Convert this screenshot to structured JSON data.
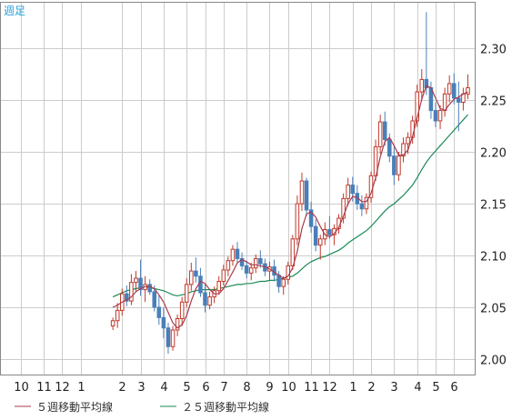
{
  "chart_data": {
    "type": "candlestick",
    "period_label": "週足",
    "ylim": [
      1.985,
      2.345
    ],
    "y_ticks": [
      "2.30",
      "2.25",
      "2.20",
      "2.15",
      "2.10",
      "2.05",
      "2.00"
    ],
    "y_tick_values": [
      2.3,
      2.25,
      2.2,
      2.15,
      2.1,
      2.05,
      2.0
    ],
    "x_tick_labels": [
      "10",
      "11",
      "12",
      "1",
      "2",
      "3",
      "4",
      "5",
      "6",
      "7",
      "8",
      "9",
      "10",
      "11",
      "12",
      "1",
      "2",
      "3",
      "4",
      "5",
      "6"
    ],
    "x_tick_index": [
      3,
      8,
      12,
      16,
      25,
      29,
      34,
      39,
      43,
      47,
      52,
      57,
      61,
      66,
      70,
      75,
      79,
      84,
      89,
      93,
      97
    ],
    "grid": true,
    "legend_position": "bottom",
    "colors": {
      "up": "#c0392b",
      "down": "#4a7fb8",
      "ma5": "#a93a4a",
      "ma25": "#1a8a55",
      "grid": "#cccccc",
      "border": "#888888"
    },
    "ohlc": [
      [
        2.032,
        2.04,
        2.028,
        2.037
      ],
      [
        2.037,
        2.054,
        2.03,
        2.047
      ],
      [
        2.047,
        2.068,
        2.042,
        2.063
      ],
      [
        2.063,
        2.071,
        2.051,
        2.056
      ],
      [
        2.056,
        2.082,
        2.052,
        2.074
      ],
      [
        2.074,
        2.085,
        2.065,
        2.078
      ],
      [
        2.078,
        2.096,
        2.061,
        2.067
      ],
      [
        2.067,
        2.08,
        2.055,
        2.072
      ],
      [
        2.072,
        2.077,
        2.062,
        2.065
      ],
      [
        2.065,
        2.071,
        2.046,
        2.05
      ],
      [
        2.05,
        2.061,
        2.033,
        2.04
      ],
      [
        2.04,
        2.05,
        2.02,
        2.03
      ],
      [
        2.03,
        2.035,
        2.005,
        2.012
      ],
      [
        2.012,
        2.032,
        2.008,
        2.028
      ],
      [
        2.028,
        2.043,
        2.022,
        2.039
      ],
      [
        2.039,
        2.06,
        2.032,
        2.055
      ],
      [
        2.055,
        2.078,
        2.05,
        2.072
      ],
      [
        2.072,
        2.093,
        2.066,
        2.085
      ],
      [
        2.085,
        2.098,
        2.074,
        2.08
      ],
      [
        2.08,
        2.088,
        2.06,
        2.064
      ],
      [
        2.064,
        2.072,
        2.045,
        2.052
      ],
      [
        2.052,
        2.065,
        2.048,
        2.06
      ],
      [
        2.06,
        2.07,
        2.054,
        2.066
      ],
      [
        2.066,
        2.08,
        2.062,
        2.075
      ],
      [
        2.075,
        2.091,
        2.071,
        2.086
      ],
      [
        2.086,
        2.099,
        2.08,
        2.095
      ],
      [
        2.095,
        2.11,
        2.09,
        2.106
      ],
      [
        2.106,
        2.113,
        2.092,
        2.097
      ],
      [
        2.097,
        2.103,
        2.086,
        2.09
      ],
      [
        2.09,
        2.095,
        2.078,
        2.083
      ],
      [
        2.083,
        2.093,
        2.076,
        2.088
      ],
      [
        2.088,
        2.101,
        2.083,
        2.097
      ],
      [
        2.097,
        2.105,
        2.088,
        2.092
      ],
      [
        2.092,
        2.097,
        2.08,
        2.085
      ],
      [
        2.085,
        2.094,
        2.076,
        2.089
      ],
      [
        2.089,
        2.096,
        2.075,
        2.081
      ],
      [
        2.081,
        2.085,
        2.064,
        2.07
      ],
      [
        2.07,
        2.08,
        2.062,
        2.077
      ],
      [
        2.077,
        2.094,
        2.072,
        2.09
      ],
      [
        2.09,
        2.12,
        2.086,
        2.116
      ],
      [
        2.116,
        2.158,
        2.11,
        2.15
      ],
      [
        2.15,
        2.18,
        2.143,
        2.172
      ],
      [
        2.172,
        2.175,
        2.138,
        2.144
      ],
      [
        2.144,
        2.152,
        2.122,
        2.128
      ],
      [
        2.128,
        2.135,
        2.104,
        2.11
      ],
      [
        2.11,
        2.12,
        2.096,
        2.116
      ],
      [
        2.116,
        2.132,
        2.11,
        2.125
      ],
      [
        2.125,
        2.138,
        2.116,
        2.12
      ],
      [
        2.12,
        2.13,
        2.11,
        2.126
      ],
      [
        2.126,
        2.14,
        2.121,
        2.136
      ],
      [
        2.136,
        2.16,
        2.131,
        2.155
      ],
      [
        2.155,
        2.175,
        2.148,
        2.168
      ],
      [
        2.168,
        2.176,
        2.152,
        2.16
      ],
      [
        2.16,
        2.168,
        2.144,
        2.15
      ],
      [
        2.15,
        2.158,
        2.138,
        2.145
      ],
      [
        2.145,
        2.16,
        2.14,
        2.156
      ],
      [
        2.156,
        2.181,
        2.151,
        2.177
      ],
      [
        2.177,
        2.212,
        2.172,
        2.205
      ],
      [
        2.205,
        2.236,
        2.198,
        2.229
      ],
      [
        2.229,
        2.239,
        2.206,
        2.212
      ],
      [
        2.212,
        2.218,
        2.19,
        2.196
      ],
      [
        2.196,
        2.205,
        2.168,
        2.178
      ],
      [
        2.178,
        2.2,
        2.172,
        2.196
      ],
      [
        2.196,
        2.214,
        2.19,
        2.208
      ],
      [
        2.208,
        2.219,
        2.198,
        2.214
      ],
      [
        2.214,
        2.235,
        2.208,
        2.23
      ],
      [
        2.23,
        2.265,
        2.224,
        2.258
      ],
      [
        2.258,
        2.28,
        2.25,
        2.27
      ],
      [
        2.27,
        2.335,
        2.255,
        2.262
      ],
      [
        2.262,
        2.268,
        2.232,
        2.24
      ],
      [
        2.24,
        2.248,
        2.224,
        2.23
      ],
      [
        2.23,
        2.245,
        2.222,
        2.24
      ],
      [
        2.24,
        2.262,
        2.234,
        2.256
      ],
      [
        2.256,
        2.274,
        2.248,
        2.266
      ],
      [
        2.266,
        2.276,
        2.246,
        2.252
      ],
      [
        2.252,
        2.268,
        2.22,
        2.248
      ],
      [
        2.248,
        2.262,
        2.24,
        2.256
      ],
      [
        2.256,
        2.275,
        2.251,
        2.262
      ]
    ],
    "ma5": [
      2.05,
      2.052,
      2.055,
      2.057,
      2.06,
      2.065,
      2.068,
      2.07,
      2.07,
      2.068,
      2.062,
      2.055,
      2.045,
      2.035,
      2.03,
      2.033,
      2.042,
      2.056,
      2.068,
      2.075,
      2.073,
      2.067,
      2.063,
      2.063,
      2.068,
      2.076,
      2.084,
      2.093,
      2.096,
      2.094,
      2.091,
      2.091,
      2.09,
      2.089,
      2.087,
      2.084,
      2.081,
      2.078,
      2.08,
      2.088,
      2.104,
      2.126,
      2.14,
      2.142,
      2.137,
      2.128,
      2.12,
      2.118,
      2.121,
      2.127,
      2.138,
      2.15,
      2.157,
      2.156,
      2.152,
      2.152,
      2.16,
      2.175,
      2.195,
      2.21,
      2.214,
      2.206,
      2.197,
      2.197,
      2.202,
      2.215,
      2.233,
      2.251,
      2.264,
      2.262,
      2.252,
      2.242,
      2.24,
      2.246,
      2.251,
      2.253,
      2.256,
      2.258
    ],
    "ma25": [
      2.06,
      2.062,
      2.064,
      2.066,
      2.067,
      2.068,
      2.069,
      2.069,
      2.069,
      2.068,
      2.067,
      2.066,
      2.064,
      2.062,
      2.061,
      2.062,
      2.063,
      2.065,
      2.066,
      2.067,
      2.067,
      2.067,
      2.067,
      2.068,
      2.069,
      2.07,
      2.071,
      2.072,
      2.072,
      2.073,
      2.073,
      2.074,
      2.075,
      2.075,
      2.076,
      2.076,
      2.077,
      2.078,
      2.079,
      2.08,
      2.083,
      2.087,
      2.091,
      2.094,
      2.096,
      2.098,
      2.099,
      2.101,
      2.103,
      2.105,
      2.108,
      2.112,
      2.115,
      2.118,
      2.121,
      2.124,
      2.128,
      2.133,
      2.138,
      2.143,
      2.147,
      2.15,
      2.154,
      2.158,
      2.163,
      2.168,
      2.175,
      2.183,
      2.19,
      2.196,
      2.201,
      2.206,
      2.211,
      2.216,
      2.221,
      2.226,
      2.231,
      2.236
    ]
  },
  "legend": {
    "ma5_label": "５週移動平均線",
    "ma25_label": "２５週移動平均線"
  }
}
